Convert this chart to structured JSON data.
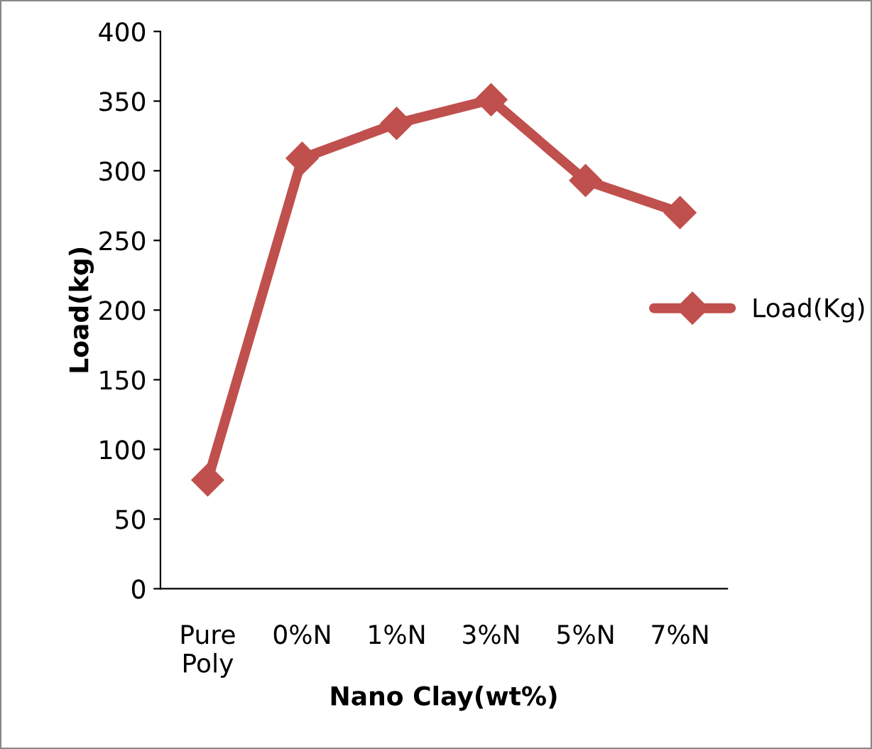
{
  "chart_data": {
    "type": "line",
    "xlabel": "Nano Clay(wt%)",
    "ylabel": "Load(kg)",
    "categories": [
      "Pure\nPoly",
      "0%N",
      "1%N",
      "3%N",
      "5%N",
      "7%N"
    ],
    "series": [
      {
        "name": "Load(Kg)",
        "color": "#c0504d",
        "values": [
          78,
          309,
          334,
          351,
          293,
          270
        ]
      }
    ],
    "ylim": [
      0,
      400
    ],
    "yticks": [
      0,
      50,
      100,
      150,
      200,
      250,
      300,
      350,
      400
    ],
    "grid": false,
    "legend": "right",
    "marker": "diamond",
    "line_style": "solid"
  }
}
